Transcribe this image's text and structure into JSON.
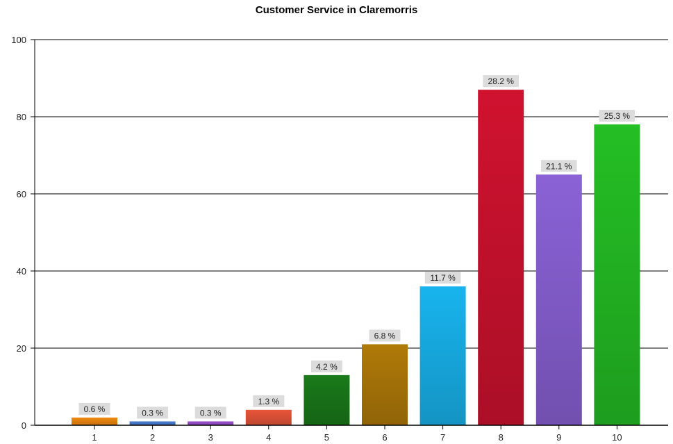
{
  "chart_data": {
    "type": "bar",
    "title": "Customer Service in Claremorris",
    "xlabel": "",
    "ylabel": "",
    "ylim": [
      0,
      100
    ],
    "yticks": [
      0,
      20,
      40,
      60,
      80,
      100
    ],
    "grid": true,
    "categories": [
      "1",
      "2",
      "3",
      "4",
      "5",
      "6",
      "7",
      "8",
      "9",
      "10"
    ],
    "values": [
      2,
      1,
      1,
      4,
      13,
      21,
      36,
      87,
      65,
      78
    ],
    "data_labels": [
      "0.6 %",
      "0.3 %",
      "0.3 %",
      "1.3 %",
      "4.2 %",
      "6.8 %",
      "11.7 %",
      "28.2 %",
      "21.1 %",
      "25.3 %"
    ],
    "colors": [
      "#f08a10",
      "#4a7fd0",
      "#9a4fd0",
      "#e8553a",
      "#1a7a1a",
      "#b07a08",
      "#18b4ee",
      "#d0122f",
      "#8a62d6",
      "#24bf24"
    ]
  }
}
